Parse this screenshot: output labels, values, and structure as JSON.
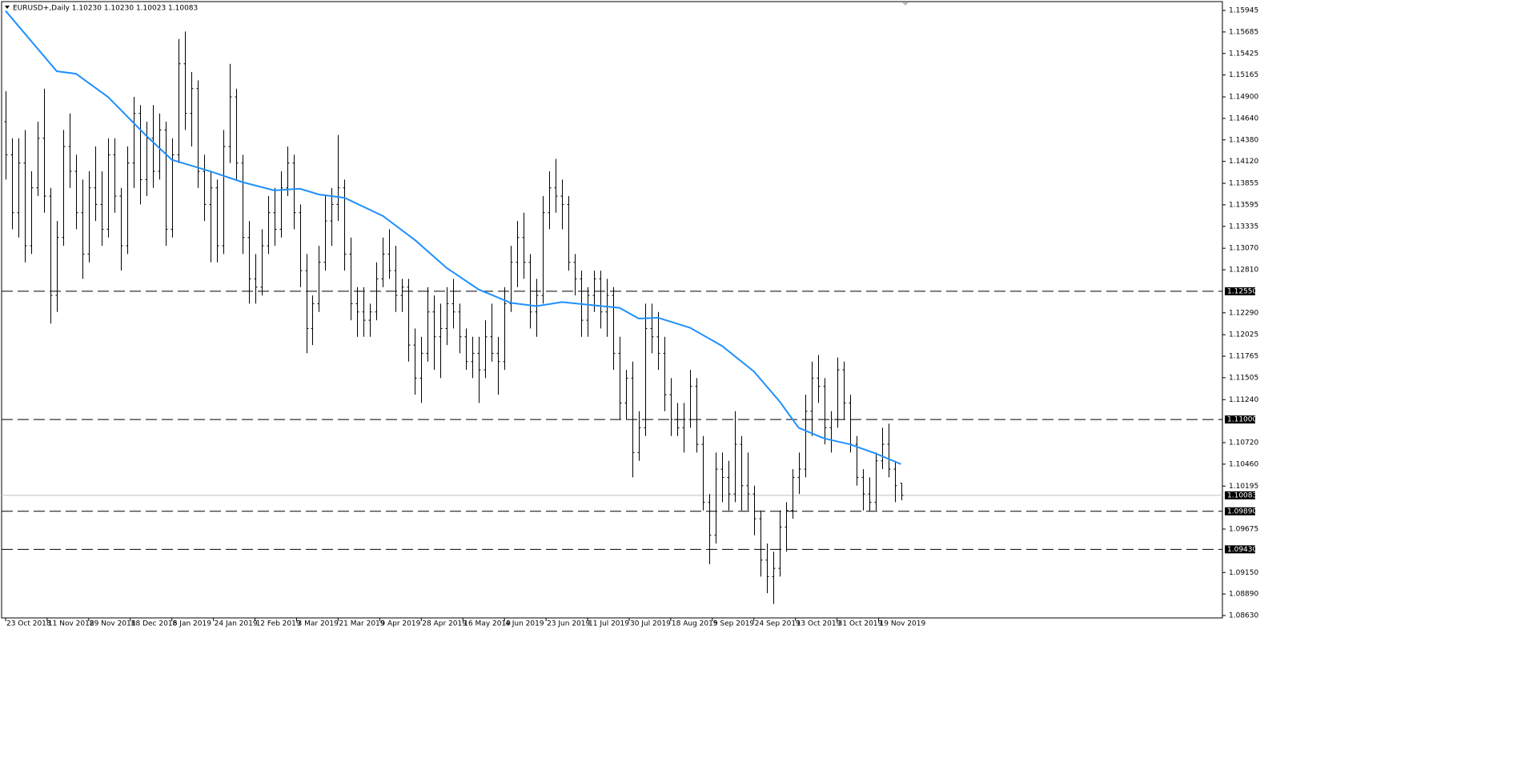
{
  "chart_data": {
    "type": "ohlc",
    "title": "EURUSD+,Daily  1.10230 1.10230 1.10023 1.10083",
    "color": "#000000",
    "ohlc": [
      [
        1.146,
        1.1497,
        1.139,
        1.142
      ],
      [
        1.142,
        1.144,
        1.133,
        1.135
      ],
      [
        1.135,
        1.144,
        1.132,
        1.141
      ],
      [
        1.141,
        1.145,
        1.129,
        1.131
      ],
      [
        1.131,
        1.14,
        1.13,
        1.138
      ],
      [
        1.138,
        1.146,
        1.137,
        1.144
      ],
      [
        1.144,
        1.15,
        1.135,
        1.137
      ],
      [
        1.137,
        1.138,
        1.1216,
        1.125
      ],
      [
        1.125,
        1.134,
        1.123,
        1.132
      ],
      [
        1.132,
        1.145,
        1.131,
        1.143
      ],
      [
        1.143,
        1.147,
        1.138,
        1.14
      ],
      [
        1.14,
        1.142,
        1.133,
        1.135
      ],
      [
        1.135,
        1.139,
        1.127,
        1.13
      ],
      [
        1.13,
        1.14,
        1.129,
        1.138
      ],
      [
        1.138,
        1.143,
        1.134,
        1.136
      ],
      [
        1.136,
        1.14,
        1.131,
        1.133
      ],
      [
        1.133,
        1.144,
        1.132,
        1.142
      ],
      [
        1.142,
        1.144,
        1.135,
        1.137
      ],
      [
        1.137,
        1.138,
        1.128,
        1.131
      ],
      [
        1.131,
        1.143,
        1.13,
        1.141
      ],
      [
        1.141,
        1.149,
        1.138,
        1.147
      ],
      [
        1.147,
        1.148,
        1.136,
        1.139
      ],
      [
        1.139,
        1.146,
        1.137,
        1.144
      ],
      [
        1.144,
        1.148,
        1.138,
        1.14
      ],
      [
        1.14,
        1.147,
        1.139,
        1.145
      ],
      [
        1.145,
        1.146,
        1.131,
        1.133
      ],
      [
        1.133,
        1.144,
        1.132,
        1.142
      ],
      [
        1.142,
        1.156,
        1.141,
        1.153
      ],
      [
        1.153,
        1.1569,
        1.145,
        1.147
      ],
      [
        1.147,
        1.152,
        1.143,
        1.15
      ],
      [
        1.15,
        1.151,
        1.138,
        1.14
      ],
      [
        1.14,
        1.142,
        1.134,
        1.136
      ],
      [
        1.136,
        1.14,
        1.129,
        1.138
      ],
      [
        1.138,
        1.139,
        1.129,
        1.131
      ],
      [
        1.131,
        1.145,
        1.13,
        1.143
      ],
      [
        1.143,
        1.153,
        1.141,
        1.149
      ],
      [
        1.149,
        1.15,
        1.139,
        1.141
      ],
      [
        1.141,
        1.142,
        1.13,
        1.132
      ],
      [
        1.132,
        1.134,
        1.124,
        1.127
      ],
      [
        1.127,
        1.13,
        1.124,
        1.126
      ],
      [
        1.126,
        1.133,
        1.125,
        1.131
      ],
      [
        1.131,
        1.137,
        1.13,
        1.135
      ],
      [
        1.135,
        1.138,
        1.131,
        1.133
      ],
      [
        1.133,
        1.14,
        1.132,
        1.138
      ],
      [
        1.138,
        1.143,
        1.137,
        1.141
      ],
      [
        1.141,
        1.142,
        1.133,
        1.135
      ],
      [
        1.135,
        1.136,
        1.126,
        1.128
      ],
      [
        1.128,
        1.13,
        1.118,
        1.121
      ],
      [
        1.121,
        1.125,
        1.119,
        1.124
      ],
      [
        1.124,
        1.131,
        1.123,
        1.129
      ],
      [
        1.129,
        1.137,
        1.128,
        1.134
      ],
      [
        1.134,
        1.138,
        1.131,
        1.136
      ],
      [
        1.136,
        1.1444,
        1.134,
        1.138
      ],
      [
        1.138,
        1.139,
        1.128,
        1.13
      ],
      [
        1.13,
        1.132,
        1.122,
        1.124
      ],
      [
        1.124,
        1.126,
        1.12,
        1.123
      ],
      [
        1.123,
        1.126,
        1.12,
        1.122
      ],
      [
        1.122,
        1.124,
        1.12,
        1.123
      ],
      [
        1.123,
        1.129,
        1.122,
        1.127
      ],
      [
        1.127,
        1.132,
        1.126,
        1.13
      ],
      [
        1.13,
        1.133,
        1.127,
        1.128
      ],
      [
        1.128,
        1.131,
        1.123,
        1.125
      ],
      [
        1.125,
        1.127,
        1.123,
        1.126
      ],
      [
        1.126,
        1.127,
        1.117,
        1.119
      ],
      [
        1.119,
        1.121,
        1.113,
        1.115
      ],
      [
        1.115,
        1.12,
        1.112,
        1.118
      ],
      [
        1.118,
        1.126,
        1.117,
        1.123
      ],
      [
        1.123,
        1.125,
        1.116,
        1.12
      ],
      [
        1.12,
        1.124,
        1.115,
        1.121
      ],
      [
        1.121,
        1.126,
        1.119,
        1.124
      ],
      [
        1.124,
        1.127,
        1.121,
        1.123
      ],
      [
        1.123,
        1.124,
        1.118,
        1.12
      ],
      [
        1.12,
        1.121,
        1.116,
        1.117
      ],
      [
        1.117,
        1.12,
        1.115,
        1.118
      ],
      [
        1.118,
        1.12,
        1.112,
        1.116
      ],
      [
        1.116,
        1.122,
        1.115,
        1.12
      ],
      [
        1.12,
        1.124,
        1.117,
        1.118
      ],
      [
        1.118,
        1.12,
        1.113,
        1.117
      ],
      [
        1.117,
        1.126,
        1.116,
        1.124
      ],
      [
        1.124,
        1.131,
        1.123,
        1.129
      ],
      [
        1.129,
        1.134,
        1.126,
        1.132
      ],
      [
        1.132,
        1.135,
        1.127,
        1.129
      ],
      [
        1.129,
        1.13,
        1.121,
        1.123
      ],
      [
        1.123,
        1.127,
        1.12,
        1.125
      ],
      [
        1.125,
        1.137,
        1.124,
        1.135
      ],
      [
        1.135,
        1.14,
        1.133,
        1.138
      ],
      [
        1.138,
        1.1415,
        1.135,
        1.137
      ],
      [
        1.137,
        1.139,
        1.133,
        1.136
      ],
      [
        1.136,
        1.137,
        1.128,
        1.129
      ],
      [
        1.129,
        1.13,
        1.125,
        1.127
      ],
      [
        1.127,
        1.128,
        1.12,
        1.122
      ],
      [
        1.122,
        1.126,
        1.12,
        1.125
      ],
      [
        1.125,
        1.128,
        1.123,
        1.127
      ],
      [
        1.127,
        1.128,
        1.121,
        1.123
      ],
      [
        1.123,
        1.127,
        1.12,
        1.125
      ],
      [
        1.125,
        1.126,
        1.116,
        1.118
      ],
      [
        1.118,
        1.12,
        1.11,
        1.112
      ],
      [
        1.112,
        1.116,
        1.11,
        1.115
      ],
      [
        1.115,
        1.117,
        1.103,
        1.106
      ],
      [
        1.106,
        1.111,
        1.105,
        1.109
      ],
      [
        1.109,
        1.124,
        1.108,
        1.121
      ],
      [
        1.121,
        1.124,
        1.118,
        1.12
      ],
      [
        1.12,
        1.123,
        1.116,
        1.118
      ],
      [
        1.118,
        1.12,
        1.111,
        1.113
      ],
      [
        1.113,
        1.115,
        1.108,
        1.11
      ],
      [
        1.11,
        1.112,
        1.108,
        1.109
      ],
      [
        1.109,
        1.112,
        1.106,
        1.11
      ],
      [
        1.11,
        1.116,
        1.109,
        1.114
      ],
      [
        1.114,
        1.115,
        1.106,
        1.107
      ],
      [
        1.107,
        1.108,
        1.099,
        1.1
      ],
      [
        1.1,
        1.101,
        1.0925,
        1.096
      ],
      [
        1.096,
        1.106,
        1.095,
        1.104
      ],
      [
        1.104,
        1.106,
        1.1,
        1.103
      ],
      [
        1.103,
        1.105,
        1.099,
        1.101
      ],
      [
        1.101,
        1.111,
        1.1,
        1.107
      ],
      [
        1.107,
        1.108,
        1.099,
        1.102
      ],
      [
        1.102,
        1.106,
        1.099,
        1.101
      ],
      [
        1.101,
        1.102,
        1.096,
        1.098
      ],
      [
        1.098,
        1.099,
        1.091,
        1.093
      ],
      [
        1.093,
        1.095,
        1.089,
        1.091
      ],
      [
        1.091,
        1.094,
        1.0877,
        1.092
      ],
      [
        1.092,
        1.099,
        1.091,
        1.097
      ],
      [
        1.097,
        1.1,
        1.094,
        1.099
      ],
      [
        1.099,
        1.104,
        1.098,
        1.103
      ],
      [
        1.103,
        1.106,
        1.101,
        1.104
      ],
      [
        1.104,
        1.113,
        1.103,
        1.111
      ],
      [
        1.111,
        1.117,
        1.108,
        1.115
      ],
      [
        1.115,
        1.1178,
        1.112,
        1.114
      ],
      [
        1.114,
        1.115,
        1.107,
        1.109
      ],
      [
        1.109,
        1.111,
        1.106,
        1.11
      ],
      [
        1.11,
        1.1175,
        1.109,
        1.116
      ],
      [
        1.116,
        1.117,
        1.11,
        1.112
      ],
      [
        1.112,
        1.113,
        1.106,
        1.107
      ],
      [
        1.107,
        1.108,
        1.102,
        1.103
      ],
      [
        1.103,
        1.104,
        1.099,
        1.101
      ],
      [
        1.101,
        1.103,
        1.0989,
        1.1
      ],
      [
        1.1,
        1.106,
        1.099,
        1.105
      ],
      [
        1.105,
        1.109,
        1.104,
        1.107
      ],
      [
        1.107,
        1.1095,
        1.103,
        1.104
      ],
      [
        1.104,
        1.105,
        1.1,
        1.102
      ],
      [
        1.1023,
        1.1023,
        1.10023,
        1.10083
      ]
    ],
    "ma": {
      "color": "#1e90ff",
      "x": [
        0,
        8,
        11,
        16,
        22,
        26,
        32,
        37,
        42,
        46,
        49,
        53,
        59,
        64,
        69,
        74,
        79,
        83,
        87,
        92,
        96,
        99,
        102,
        107,
        112,
        117,
        121,
        124,
        128,
        132,
        136,
        140
      ],
      "values": [
        1.1594,
        1.1521,
        1.1518,
        1.149,
        1.1443,
        1.1414,
        1.14,
        1.1387,
        1.1377,
        1.1379,
        1.1372,
        1.1368,
        1.1346,
        1.1317,
        1.1283,
        1.1257,
        1.1241,
        1.1237,
        1.1242,
        1.1238,
        1.1235,
        1.1222,
        1.1223,
        1.1211,
        1.1189,
        1.1158,
        1.1122,
        1.109,
        1.1077,
        1.107,
        1.1059,
        1.1046
      ]
    },
    "levels": [
      {
        "value": 1.1255,
        "label": "1.12550"
      },
      {
        "value": 1.11,
        "label": "1.11000"
      },
      {
        "value": 1.0989,
        "label": "1.09890"
      },
      {
        "value": 1.0943,
        "label": "1.09430"
      }
    ],
    "current_price": 1.10083,
    "ylim": [
      1.08601,
      1.16052
    ],
    "yticks": [
      1.15945,
      1.15685,
      1.15425,
      1.15165,
      {
        "value": 1.149,
        "label": "1.14900"
      },
      {
        "value": 1.1464,
        "label": "1.14640"
      },
      {
        "value": 1.1438,
        "label": "1.14380"
      },
      {
        "value": 1.1412,
        "label": "1.14120"
      },
      1.13855,
      1.13595,
      1.13335,
      {
        "value": 1.1307,
        "label": "1.13070"
      },
      {
        "value": 1.1281,
        "label": "1.12810"
      },
      {
        "value": 1.1229,
        "label": "1.12290"
      },
      1.12025,
      1.11765,
      1.11505,
      {
        "value": 1.1124,
        "label": "1.11240"
      },
      {
        "value": 1.1072,
        "label": "1.10720"
      },
      {
        "value": 1.1046,
        "label": "1.10460"
      },
      1.10195,
      1.09675,
      {
        "value": 1.0915,
        "label": "1.09150"
      },
      {
        "value": 1.0889,
        "label": "1.08890"
      },
      {
        "value": 1.0863,
        "label": "1.08630"
      }
    ],
    "xlim": [
      -0.625,
      190.25
    ],
    "xticks": [
      {
        "value": 0,
        "label": "23 Oct 2018"
      },
      {
        "value": 6.5,
        "label": "11 Nov 2018"
      },
      {
        "value": 13,
        "label": "29 Nov 2018"
      },
      {
        "value": 19.5,
        "label": "18 Dec 2018"
      },
      {
        "value": 26,
        "label": "6 Jan 2019"
      },
      {
        "value": 32.5,
        "label": "24 Jan 2019"
      },
      {
        "value": 39,
        "label": "12 Feb 2019"
      },
      {
        "value": 45.5,
        "label": "3 Mar 2019"
      },
      {
        "value": 52,
        "label": "21 Mar 2019"
      },
      {
        "value": 58.5,
        "label": "9 Apr 2019"
      },
      {
        "value": 65,
        "label": "28 Apr 2019"
      },
      {
        "value": 71.5,
        "label": "16 May 2019"
      },
      {
        "value": 78,
        "label": "4 Jun 2019"
      },
      {
        "value": 84.5,
        "label": "23 Jun 2019"
      },
      {
        "value": 91,
        "label": "11 Jul 2019"
      },
      {
        "value": 97.5,
        "label": "30 Jul 2019"
      },
      {
        "value": 104,
        "label": "18 Aug 2019"
      },
      {
        "value": 110.5,
        "label": "5 Sep 2019"
      },
      {
        "value": 117,
        "label": "24 Sep 2019"
      },
      {
        "value": 123.5,
        "label": "13 Oct 2019"
      },
      {
        "value": 130,
        "label": "31 Oct 2019"
      },
      {
        "value": 136.5,
        "label": "19 Nov 2019"
      }
    ]
  }
}
